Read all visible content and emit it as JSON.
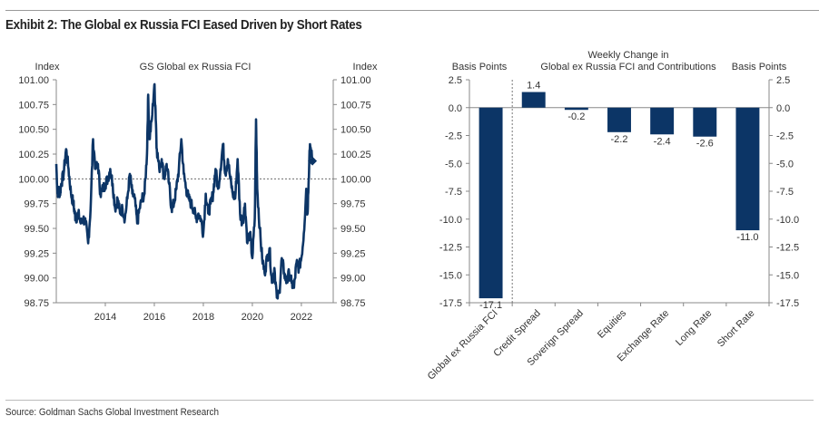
{
  "header": {
    "title": "Exhibit 2: The Global ex Russia FCI Eased Driven by Short Rates"
  },
  "footer": {
    "source": "Source: Goldman Sachs Global Investment Research"
  },
  "colors": {
    "series": "#0c3566",
    "axis": "#888888",
    "reference_line": "#555555"
  },
  "chart_data": [
    {
      "type": "line",
      "title": "GS Global ex Russia FCI",
      "ylabel_left": "Index",
      "ylabel_right": "Index",
      "xlabel": "",
      "ylim": [
        98.75,
        101.0
      ],
      "xlim": [
        2012.0,
        2023.3
      ],
      "yticks": [
        "101.00",
        "100.75",
        "100.50",
        "100.25",
        "100.00",
        "99.75",
        "99.50",
        "99.25",
        "99.00",
        "98.75"
      ],
      "xticks": [
        "2014",
        "2016",
        "2018",
        "2020",
        "2022"
      ],
      "reference_line": 100.0,
      "last_point_marker": {
        "x": 2022.45,
        "y": 100.18
      },
      "series": [
        {
          "name": "GS Global ex Russia FCI",
          "x": [
            2012.0,
            2012.05,
            2012.1,
            2012.15,
            2012.2,
            2012.3,
            2012.4,
            2012.5,
            2012.6,
            2012.7,
            2012.75,
            2012.8,
            2012.9,
            2013.0,
            2013.1,
            2013.2,
            2013.3,
            2013.4,
            2013.5,
            2013.6,
            2013.7,
            2013.8,
            2013.9,
            2014.0,
            2014.1,
            2014.2,
            2014.3,
            2014.4,
            2014.5,
            2014.6,
            2014.7,
            2014.8,
            2014.9,
            2015.0,
            2015.1,
            2015.2,
            2015.3,
            2015.4,
            2015.5,
            2015.6,
            2015.7,
            2015.75,
            2015.8,
            2015.9,
            2016.0,
            2016.05,
            2016.1,
            2016.2,
            2016.3,
            2016.4,
            2016.5,
            2016.6,
            2016.7,
            2016.8,
            2016.9,
            2017.0,
            2017.1,
            2017.2,
            2017.3,
            2017.4,
            2017.5,
            2017.6,
            2017.7,
            2017.8,
            2017.9,
            2018.0,
            2018.1,
            2018.2,
            2018.3,
            2018.4,
            2018.5,
            2018.6,
            2018.7,
            2018.8,
            2018.9,
            2019.0,
            2019.1,
            2019.2,
            2019.3,
            2019.4,
            2019.5,
            2019.6,
            2019.7,
            2019.8,
            2019.9,
            2020.0,
            2020.1,
            2020.15,
            2020.2,
            2020.3,
            2020.4,
            2020.5,
            2020.6,
            2020.7,
            2020.8,
            2020.9,
            2021.0,
            2021.1,
            2021.2,
            2021.3,
            2021.4,
            2021.5,
            2021.6,
            2021.7,
            2021.8,
            2021.9,
            2022.0,
            2022.1,
            2022.2,
            2022.25,
            2022.3,
            2022.35,
            2022.45
          ],
          "y": [
            100.15,
            99.85,
            99.9,
            99.85,
            99.95,
            100.05,
            100.3,
            100.1,
            99.85,
            99.75,
            99.65,
            99.6,
            99.65,
            99.55,
            99.6,
            99.55,
            99.35,
            99.7,
            100.4,
            100.1,
            100.15,
            99.85,
            99.9,
            99.95,
            100.0,
            100.1,
            99.95,
            99.7,
            99.8,
            99.65,
            99.7,
            99.6,
            99.8,
            100.05,
            99.85,
            99.8,
            99.55,
            99.7,
            99.8,
            99.85,
            100.25,
            100.85,
            100.4,
            100.6,
            100.95,
            100.7,
            100.3,
            100.1,
            100.2,
            100.0,
            100.15,
            99.95,
            99.7,
            99.75,
            99.9,
            100.1,
            100.4,
            100.05,
            99.9,
            99.8,
            99.75,
            99.7,
            99.6,
            99.65,
            99.6,
            99.45,
            99.85,
            99.65,
            99.75,
            99.85,
            100.1,
            99.9,
            100.1,
            100.35,
            100.05,
            100.2,
            100.0,
            99.85,
            99.8,
            100.2,
            99.65,
            99.55,
            99.75,
            99.35,
            99.45,
            99.2,
            99.6,
            100.6,
            99.9,
            99.5,
            99.2,
            99.05,
            99.2,
            99.3,
            98.95,
            99.1,
            98.8,
            98.85,
            99.2,
            99.05,
            98.95,
            99.05,
            98.95,
            98.9,
            99.15,
            99.1,
            99.2,
            99.45,
            99.9,
            99.65,
            100.0,
            100.35,
            100.18
          ]
        }
      ]
    },
    {
      "type": "bar",
      "title": "Weekly Change in\nGlobal ex Russia FCI and Contributions",
      "title_lines": [
        "Weekly Change in",
        "Global ex Russia FCI and Contributions"
      ],
      "ylabel_left": "Basis Points",
      "ylabel_right": "Basis Points",
      "xlabel": "",
      "ylim": [
        -17.5,
        2.5
      ],
      "yticks": [
        "2.5",
        "0.0",
        "-2.5",
        "-5.0",
        "-7.5",
        "-10.0",
        "-12.5",
        "-15.0",
        "-17.5"
      ],
      "categories": [
        "Global ex Russia FCI",
        "Credit Spread",
        "Soverign Spread",
        "Equities",
        "Exchange Rate",
        "Long Rate",
        "Short Rate"
      ],
      "values": [
        -17.1,
        1.4,
        -0.2,
        -2.2,
        -2.4,
        -2.6,
        -11.0
      ],
      "data_labels": [
        "-17.1",
        "1.4",
        "-0.2",
        "-2.2",
        "-2.4",
        "-2.6",
        "-11.0"
      ],
      "separator_after_category": "Global ex Russia FCI"
    }
  ]
}
